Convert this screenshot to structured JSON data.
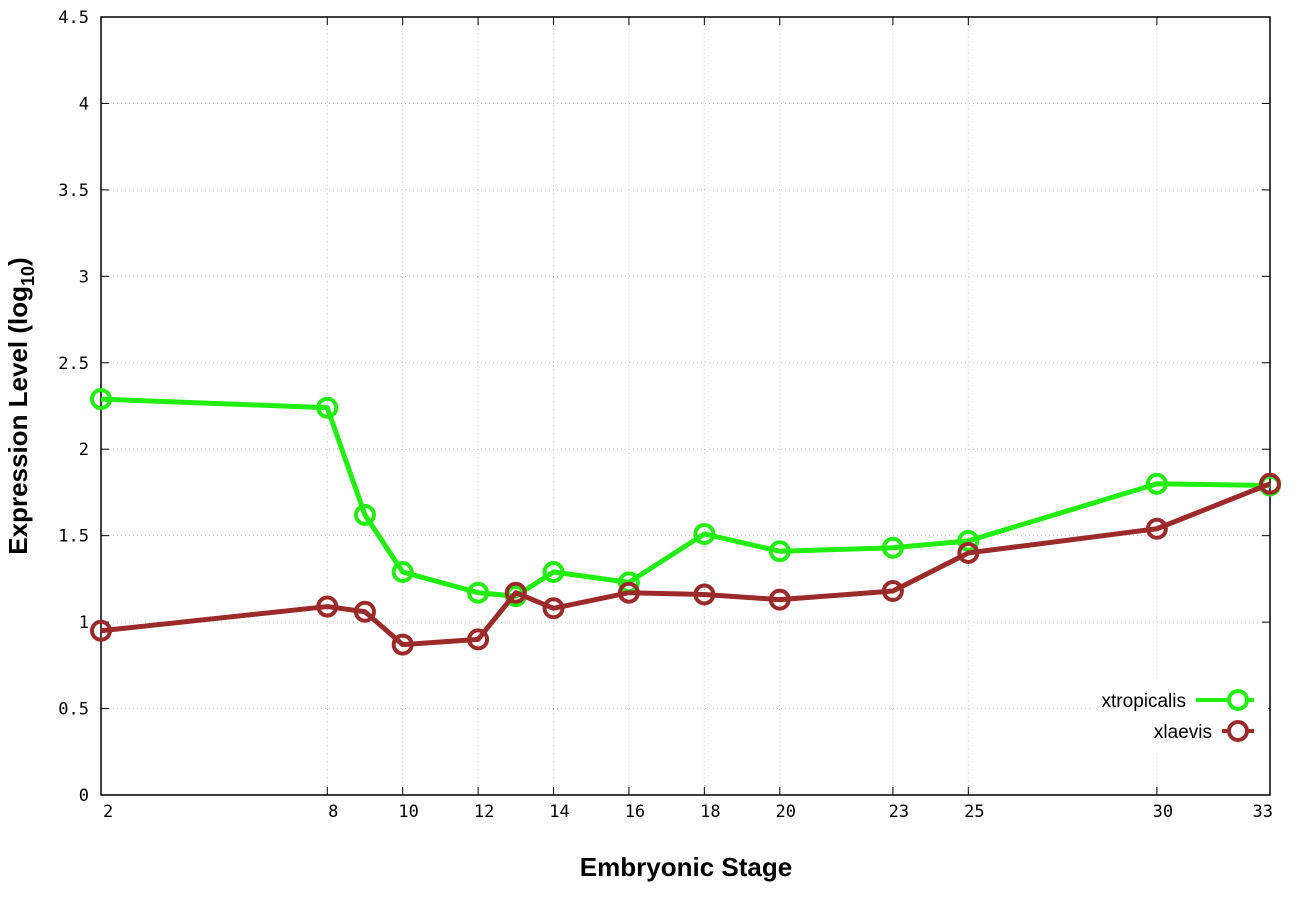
{
  "chart_data": {
    "type": "line",
    "xlabel": "Embryonic Stage",
    "ylabel": "Expression Level (log",
    "ylabel_sub": "10",
    "ylabel_end": ")",
    "xlim": [
      2,
      33
    ],
    "ylim": [
      0,
      4.5
    ],
    "x_ticks": [
      2,
      8,
      10,
      12,
      14,
      16,
      18,
      20,
      23,
      25,
      30,
      33
    ],
    "y_ticks": [
      0,
      0.5,
      1,
      1.5,
      2,
      2.5,
      3,
      3.5,
      4,
      4.5
    ],
    "y_tick_labels": [
      "0",
      "0.5",
      "1",
      "1.5",
      "2",
      "2.5",
      "3",
      "3.5",
      "4",
      "4.5"
    ],
    "grid": true,
    "legend_position": "bottom-right",
    "x": [
      2,
      8,
      9,
      10,
      12,
      13,
      14,
      16,
      18,
      20,
      23,
      25,
      30,
      33
    ],
    "series": [
      {
        "name": "xtropicalis",
        "color": "#22ee11",
        "values": [
          2.29,
          2.24,
          1.62,
          1.29,
          1.17,
          1.15,
          1.29,
          1.23,
          1.51,
          1.41,
          1.43,
          1.47,
          1.8,
          1.79
        ]
      },
      {
        "name": "xlaevis",
        "color": "#9b2a2a",
        "values": [
          0.95,
          1.09,
          1.06,
          0.87,
          0.9,
          1.17,
          1.08,
          1.17,
          1.16,
          1.13,
          1.18,
          1.4,
          1.54,
          1.8
        ]
      }
    ]
  }
}
